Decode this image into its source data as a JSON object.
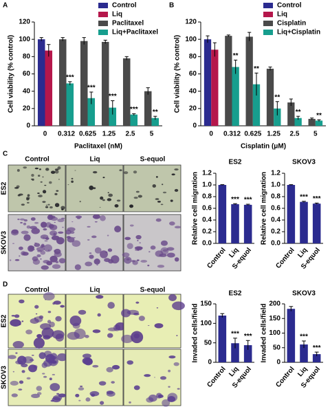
{
  "chart_data": [
    {
      "type": "bar",
      "panel": "A",
      "xlabel": "Paclitaxel (nM)",
      "ylabel": "Cell viability (% control)",
      "categories": [
        "0",
        "0.312",
        "0.625",
        "1.25",
        "2.5",
        "5"
      ],
      "series": [
        {
          "name": "Control",
          "color": "#2b2b8f",
          "values": [
            100,
            null,
            null,
            null,
            null,
            null
          ],
          "errors": [
            2,
            null,
            null,
            null,
            null,
            null
          ]
        },
        {
          "name": "Liq",
          "color": "#b5174b",
          "values": [
            87,
            null,
            null,
            null,
            null,
            null
          ],
          "errors": [
            7,
            null,
            null,
            null,
            null,
            null
          ]
        },
        {
          "name": "Paclitaxel",
          "color": "#4a4a4a",
          "values": [
            null,
            100,
            98,
            97,
            78,
            40
          ],
          "errors": [
            null,
            2,
            4,
            2,
            2,
            4
          ]
        },
        {
          "name": "Liq+Paclitaxel",
          "color": "#179e8e",
          "values": [
            null,
            49,
            32,
            21,
            13,
            9
          ],
          "errors": [
            null,
            2,
            7,
            8,
            1,
            2
          ],
          "significance": [
            null,
            "***",
            "***",
            "***",
            "***",
            "**"
          ]
        }
      ],
      "ylim": [
        0,
        120
      ],
      "yticks": [
        0,
        20,
        40,
        60,
        80,
        100,
        120
      ],
      "legend": "upper right"
    },
    {
      "type": "bar",
      "panel": "B",
      "xlabel": "Cisplatin (μM)",
      "ylabel": "Cell viability (% control)",
      "categories": [
        "0",
        "0.312",
        "0.625",
        "1.25",
        "2.5",
        "5"
      ],
      "series": [
        {
          "name": "Control",
          "color": "#2b2b8f",
          "values": [
            100,
            null,
            null,
            null,
            null,
            null
          ],
          "errors": [
            4,
            null,
            null,
            null,
            null,
            null
          ]
        },
        {
          "name": "Liq",
          "color": "#b5174b",
          "values": [
            88,
            null,
            null,
            null,
            null,
            null
          ],
          "errors": [
            8,
            null,
            null,
            null,
            null,
            null
          ]
        },
        {
          "name": "Cisplatin",
          "color": "#4a4a4a",
          "values": [
            null,
            104,
            103,
            66,
            27,
            8
          ],
          "errors": [
            null,
            1,
            5,
            2,
            4,
            1
          ]
        },
        {
          "name": "Liq+Cisplatin",
          "color": "#179e8e",
          "values": [
            null,
            68,
            48,
            20,
            9,
            6
          ],
          "errors": [
            null,
            8,
            13,
            8,
            2,
            1
          ],
          "significance": [
            null,
            "**",
            "**",
            "**",
            "**",
            "**"
          ]
        }
      ],
      "ylim": [
        0,
        120
      ],
      "yticks": [
        0,
        20,
        40,
        60,
        80,
        100,
        120
      ],
      "legend": "upper right"
    },
    {
      "type": "bar",
      "title": "ES2",
      "ylabel": "Relative cell migration",
      "categories": [
        "Control",
        "Liq",
        "S-equol"
      ],
      "values": [
        1.0,
        0.67,
        0.66
      ],
      "errors": [
        0.005,
        0.01,
        0.01
      ],
      "significance": [
        null,
        "***",
        "***"
      ],
      "color": "#2b2b8f",
      "ylim": [
        0,
        1.2
      ],
      "yticks": [
        {
          "value": 0,
          "label": "0.0"
        },
        0.2,
        0.4,
        0.6,
        0.8,
        {
          "value": 1,
          "label": "1.0"
        },
        1.2
      ]
    },
    {
      "type": "bar",
      "title": "SKOV3",
      "ylabel": "Relative cell migration",
      "categories": [
        "Control",
        "Liq",
        "S-equol"
      ],
      "values": [
        1.0,
        0.71,
        0.68
      ],
      "errors": [
        0.005,
        0.01,
        0.01
      ],
      "significance": [
        null,
        "***",
        "***"
      ],
      "color": "#2b2b8f",
      "ylim": [
        0,
        1.2
      ],
      "yticks": [
        {
          "value": 0,
          "label": "0.0"
        },
        0.2,
        0.4,
        0.6,
        0.8,
        {
          "value": 1,
          "label": "1.0"
        },
        1.2
      ]
    },
    {
      "type": "bar",
      "title": "ES2",
      "ylabel": "Invaded cells/field",
      "categories": [
        "Control",
        "Liq",
        "S-equol"
      ],
      "values": [
        120,
        49,
        44
      ],
      "errors": [
        5,
        13,
        12
      ],
      "significance": [
        null,
        "***",
        "***"
      ],
      "color": "#2b2b8f",
      "ylim": [
        0,
        150
      ],
      "yticks": [
        0,
        50,
        100,
        150
      ]
    },
    {
      "type": "bar",
      "title": "SKOV3",
      "ylabel": "Invaded cells/field",
      "categories": [
        "Control",
        "Liq",
        "S-equol"
      ],
      "values": [
        183,
        61,
        28
      ],
      "errors": [
        8,
        12,
        7
      ],
      "significance": [
        null,
        "***",
        "***"
      ],
      "color": "#2b2b8f",
      "ylim": [
        0,
        200
      ],
      "yticks": [
        0,
        50,
        100,
        150,
        200
      ]
    }
  ],
  "figure": {
    "micrographs": [
      {
        "panel": "C",
        "columns": [
          "Control",
          "Liq",
          "S-equol"
        ],
        "rows": [
          "ES2",
          "SKOV3"
        ]
      },
      {
        "panel": "D",
        "columns": [
          "Control",
          "Liq",
          "S-equol"
        ],
        "rows": [
          "ES2",
          "SKOV3"
        ]
      }
    ]
  }
}
